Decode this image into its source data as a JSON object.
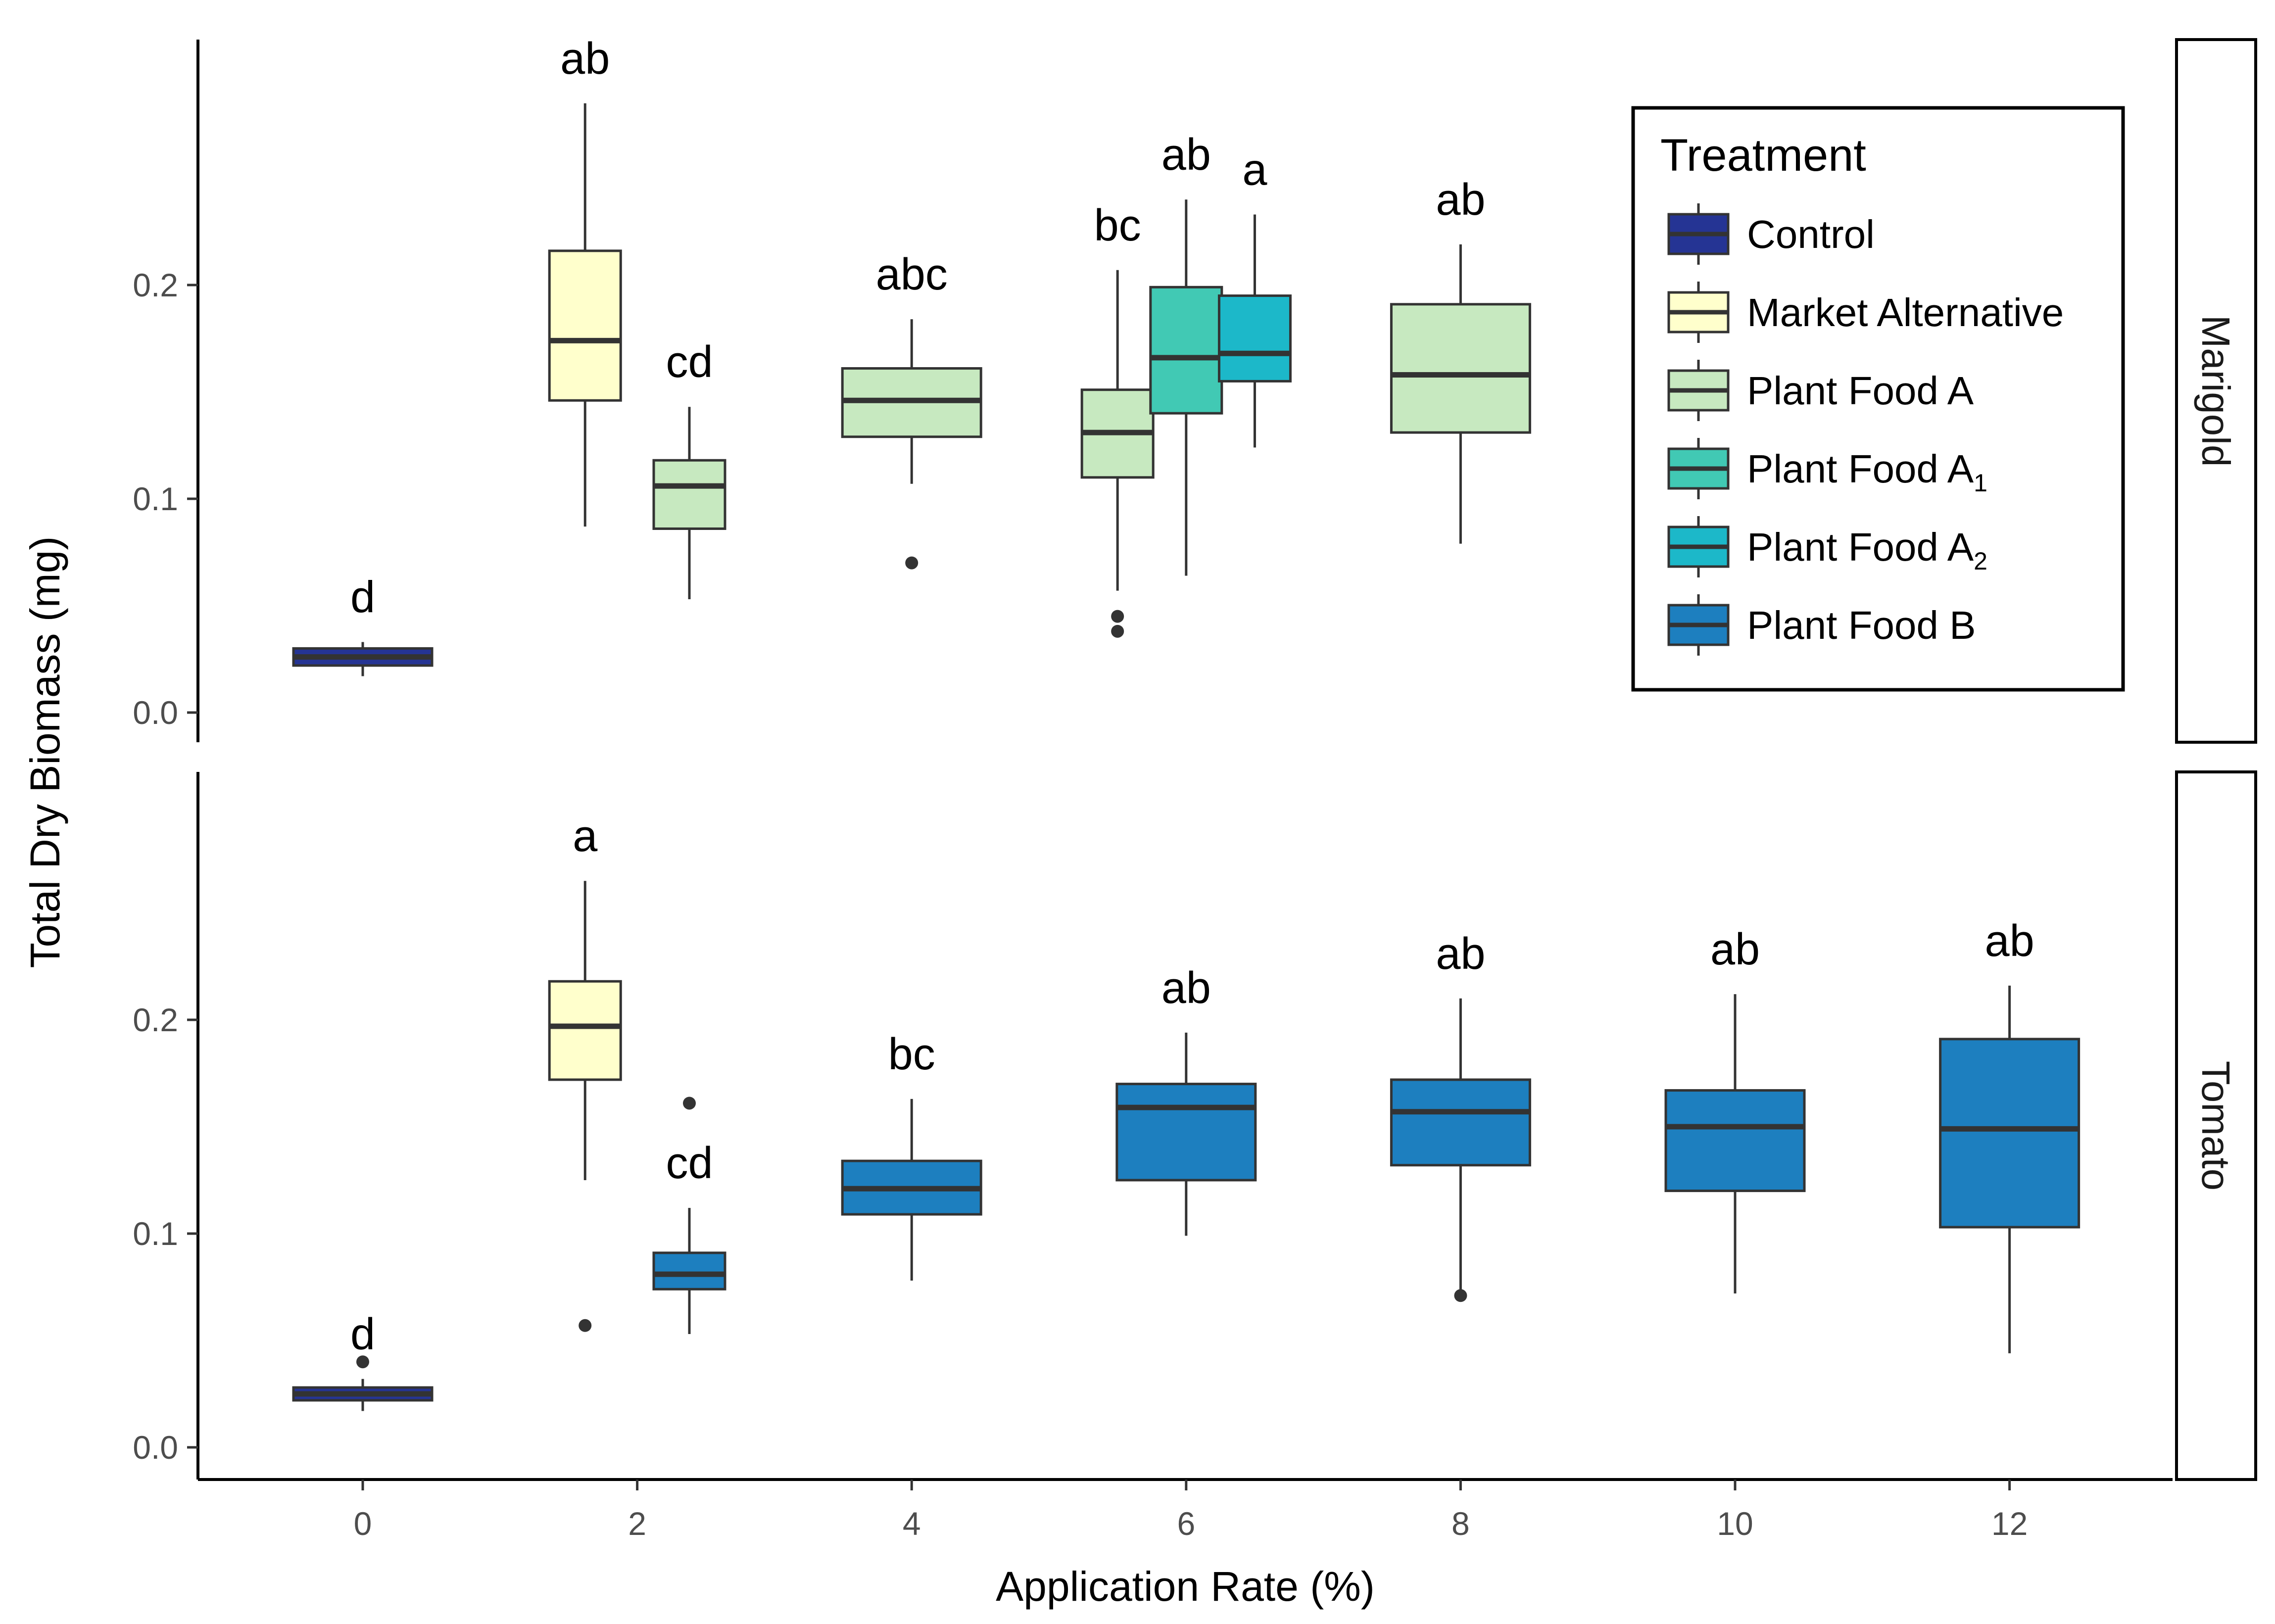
{
  "chart_data": {
    "type": "box",
    "xlabel": "Application Rate (%)",
    "ylabel": "Total Dry Biomass (mg)",
    "x_ticks": [
      "0",
      "2",
      "4",
      "6",
      "8",
      "10",
      "12"
    ],
    "y_ticks": [
      "0.0",
      "0.1",
      "0.2"
    ],
    "ylim": [
      -0.015,
      0.32
    ],
    "xlim": [
      -1.2,
      13.2
    ],
    "grid": false,
    "legend": {
      "title": "Treatment",
      "placement": "top-right",
      "items": [
        {
          "label": "Control",
          "sub": "",
          "color": "#253494"
        },
        {
          "label": "Market Alternative",
          "sub": "",
          "color": "#ffffcc"
        },
        {
          "label": "Plant Food A",
          "sub": "",
          "color": "#c7e9c0"
        },
        {
          "label": "Plant Food A",
          "sub": "1",
          "color": "#41c9b4"
        },
        {
          "label": "Plant Food A",
          "sub": "2",
          "color": "#1cb8c9"
        },
        {
          "label": "Plant Food B",
          "sub": "",
          "color": "#1d7fbf"
        }
      ]
    },
    "panels": [
      {
        "strip": "Marigold",
        "boxes": [
          {
            "x": 0,
            "treatment": "Control",
            "color": "#253494",
            "whisker_low": 0.017,
            "q1": 0.022,
            "median": 0.026,
            "q3": 0.03,
            "whisker_high": 0.033,
            "outliers": [],
            "label": "d"
          },
          {
            "x": 1.62,
            "treatment": "Market Alternative",
            "color": "#ffffcc",
            "whisker_low": 0.087,
            "q1": 0.146,
            "median": 0.174,
            "q3": 0.216,
            "whisker_high": 0.285,
            "outliers": [],
            "label": "ab"
          },
          {
            "x": 2.38,
            "treatment": "Plant Food A",
            "color": "#c7e9c0",
            "whisker_low": 0.053,
            "q1": 0.086,
            "median": 0.106,
            "q3": 0.118,
            "whisker_high": 0.143,
            "outliers": [],
            "label": "cd"
          },
          {
            "x": 4,
            "treatment": "Plant Food A",
            "color": "#c7e9c0",
            "whisker_low": 0.107,
            "q1": 0.129,
            "median": 0.146,
            "q3": 0.161,
            "whisker_high": 0.184,
            "outliers": [
              0.07
            ],
            "label": "abc"
          },
          {
            "x": 5.5,
            "treatment": "Plant Food A",
            "color": "#c7e9c0",
            "whisker_low": 0.057,
            "q1": 0.11,
            "median": 0.131,
            "q3": 0.151,
            "whisker_high": 0.207,
            "outliers": [
              0.045,
              0.038
            ],
            "label": "bc"
          },
          {
            "x": 6.0,
            "treatment": "Plant Food A1",
            "color": "#41c9b4",
            "whisker_low": 0.064,
            "q1": 0.14,
            "median": 0.166,
            "q3": 0.199,
            "whisker_high": 0.24,
            "outliers": [],
            "label": "ab"
          },
          {
            "x": 6.5,
            "treatment": "Plant Food A2",
            "color": "#1cb8c9",
            "whisker_low": 0.124,
            "q1": 0.155,
            "median": 0.168,
            "q3": 0.195,
            "whisker_high": 0.233,
            "outliers": [],
            "label": "a"
          },
          {
            "x": 8,
            "treatment": "Plant Food A",
            "color": "#c7e9c0",
            "whisker_low": 0.079,
            "q1": 0.131,
            "median": 0.158,
            "q3": 0.191,
            "whisker_high": 0.219,
            "outliers": [],
            "label": "ab"
          }
        ]
      },
      {
        "strip": "Tomato",
        "boxes": [
          {
            "x": 0,
            "treatment": "Control",
            "color": "#253494",
            "whisker_low": 0.017,
            "q1": 0.022,
            "median": 0.025,
            "q3": 0.028,
            "whisker_high": 0.032,
            "outliers": [
              0.04
            ],
            "label": "d"
          },
          {
            "x": 1.62,
            "treatment": "Market Alternative",
            "color": "#ffffcc",
            "whisker_low": 0.125,
            "q1": 0.172,
            "median": 0.197,
            "q3": 0.218,
            "whisker_high": 0.265,
            "outliers": [
              0.057
            ],
            "label": "a"
          },
          {
            "x": 2.38,
            "treatment": "Plant Food B",
            "color": "#1d7fbf",
            "whisker_low": 0.053,
            "q1": 0.074,
            "median": 0.081,
            "q3": 0.091,
            "whisker_high": 0.112,
            "outliers": [
              0.161
            ],
            "label": "cd"
          },
          {
            "x": 4,
            "treatment": "Plant Food B",
            "color": "#1d7fbf",
            "whisker_low": 0.078,
            "q1": 0.109,
            "median": 0.121,
            "q3": 0.134,
            "whisker_high": 0.163,
            "outliers": [],
            "label": "bc"
          },
          {
            "x": 6,
            "treatment": "Plant Food B",
            "color": "#1d7fbf",
            "whisker_low": 0.099,
            "q1": 0.125,
            "median": 0.159,
            "q3": 0.17,
            "whisker_high": 0.194,
            "outliers": [],
            "label": "ab"
          },
          {
            "x": 8,
            "treatment": "Plant Food B",
            "color": "#1d7fbf",
            "whisker_low": 0.071,
            "q1": 0.132,
            "median": 0.157,
            "q3": 0.172,
            "whisker_high": 0.21,
            "outliers": [
              0.071
            ],
            "label": "ab"
          },
          {
            "x": 10,
            "treatment": "Plant Food B",
            "color": "#1d7fbf",
            "whisker_low": 0.072,
            "q1": 0.12,
            "median": 0.15,
            "q3": 0.167,
            "whisker_high": 0.212,
            "outliers": [],
            "label": "ab"
          },
          {
            "x": 12,
            "treatment": "Plant Food B",
            "color": "#1d7fbf",
            "whisker_low": 0.044,
            "q1": 0.103,
            "median": 0.149,
            "q3": 0.191,
            "whisker_high": 0.216,
            "outliers": [],
            "label": "ab"
          }
        ]
      }
    ]
  }
}
